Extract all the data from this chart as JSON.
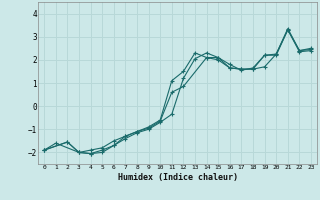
{
  "xlabel": "Humidex (Indice chaleur)",
  "ylabel": "",
  "bg_color": "#cce8e8",
  "grid_color": "#b8d8d8",
  "line_color": "#1a6b6b",
  "xlim": [
    -0.5,
    23.5
  ],
  "ylim": [
    -2.5,
    4.5
  ],
  "xticks": [
    0,
    1,
    2,
    3,
    4,
    5,
    6,
    7,
    8,
    9,
    10,
    11,
    12,
    13,
    14,
    15,
    16,
    17,
    18,
    19,
    20,
    21,
    22,
    23
  ],
  "yticks": [
    -2,
    -1,
    0,
    1,
    2,
    3,
    4
  ],
  "series": [
    {
      "x": [
        0,
        1,
        3,
        4,
        5,
        6,
        7,
        8,
        9,
        10,
        11,
        12,
        13,
        14,
        15,
        16,
        17,
        18,
        19,
        20,
        21,
        22,
        23
      ],
      "y": [
        -1.9,
        -1.6,
        -2.0,
        -1.9,
        -1.8,
        -1.5,
        -1.3,
        -1.1,
        -0.9,
        -0.6,
        1.1,
        1.5,
        2.3,
        2.1,
        2.1,
        1.65,
        1.6,
        1.6,
        1.7,
        2.25,
        3.3,
        2.4,
        2.5
      ]
    },
    {
      "x": [
        0,
        2,
        3,
        4,
        5,
        6,
        7,
        8,
        9,
        10,
        11,
        12,
        13,
        14,
        15,
        16,
        17,
        18,
        19,
        20,
        21,
        22,
        23
      ],
      "y": [
        -1.9,
        -1.55,
        -2.0,
        -2.05,
        -1.9,
        -1.7,
        -1.4,
        -1.15,
        -1.0,
        -0.7,
        -0.35,
        1.2,
        2.05,
        2.3,
        2.1,
        1.8,
        1.55,
        1.65,
        2.2,
        2.25,
        3.35,
        2.4,
        2.45
      ]
    },
    {
      "x": [
        0,
        2,
        3,
        4,
        5,
        6,
        7,
        8,
        9,
        10,
        11,
        12,
        14,
        15,
        16,
        17,
        18,
        19,
        20,
        21,
        22,
        23
      ],
      "y": [
        -1.9,
        -1.55,
        -2.0,
        -2.05,
        -2.0,
        -1.7,
        -1.3,
        -1.1,
        -0.95,
        -0.65,
        0.6,
        0.85,
        2.1,
        2.0,
        1.65,
        1.6,
        1.6,
        2.2,
        2.2,
        3.3,
        2.35,
        2.4
      ]
    }
  ]
}
